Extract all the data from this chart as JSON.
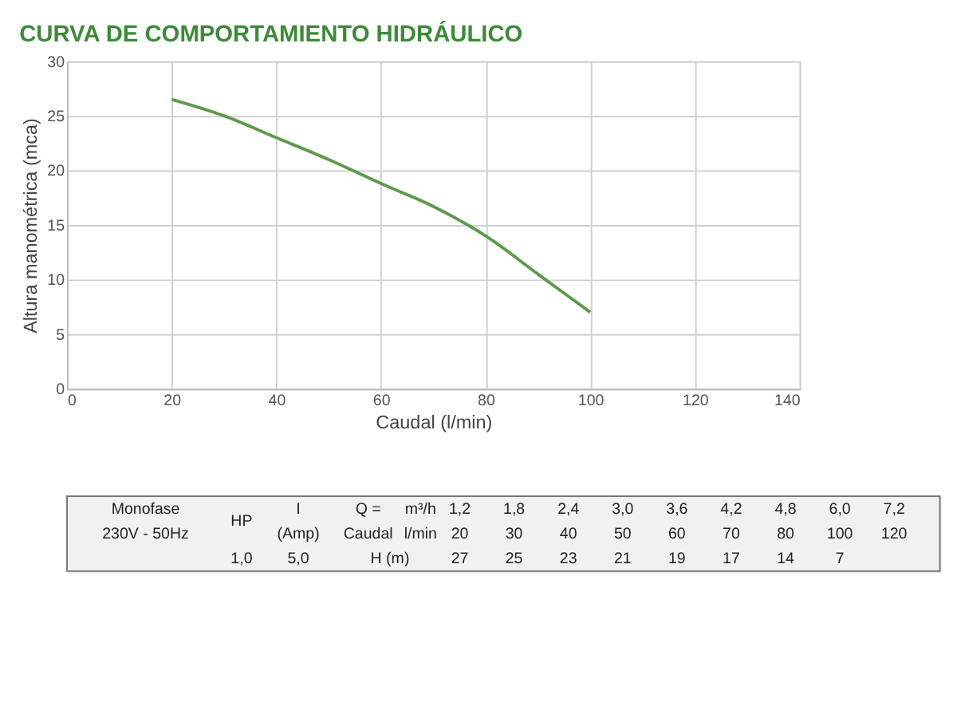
{
  "chart_data": {
    "type": "line",
    "title": "CURVA DE COMPORTAMIENTO HIDRÁULICO",
    "xlabel": "Caudal (l/min)",
    "ylabel": "Altura manométrica (mca)",
    "x": [
      20,
      30,
      40,
      50,
      60,
      70,
      80,
      90,
      100
    ],
    "series": [
      {
        "color": "#5e9a4c",
        "values": [
          26.5,
          25,
          23,
          21,
          18.8,
          16.7,
          14,
          10.5,
          7
        ]
      }
    ],
    "xlim": [
      0,
      140
    ],
    "xticks": [
      0,
      20,
      40,
      60,
      80,
      100,
      120,
      140
    ],
    "ylim": [
      0,
      30
    ],
    "yticks": [
      0,
      5,
      10,
      15,
      20,
      25,
      30
    ],
    "grid": true,
    "marker": "none",
    "line_style": "solid",
    "annotations": [
      "Monofase",
      "HP",
      "I",
      "Q =",
      "m³/h",
      "1,2",
      "1,8",
      "2,4",
      "3,0",
      "3,6",
      "4,2",
      "4,8",
      "6,0",
      "7,2",
      "230V - 50Hz",
      "(Amp)",
      "Caudal",
      "l/min",
      "20",
      "30",
      "40",
      "50",
      "60",
      "70",
      "80",
      "100",
      "120",
      "1,0",
      "5,0",
      "H (m)",
      "27",
      "25",
      "23",
      "21",
      "19",
      "17",
      "14",
      "7"
    ]
  }
}
